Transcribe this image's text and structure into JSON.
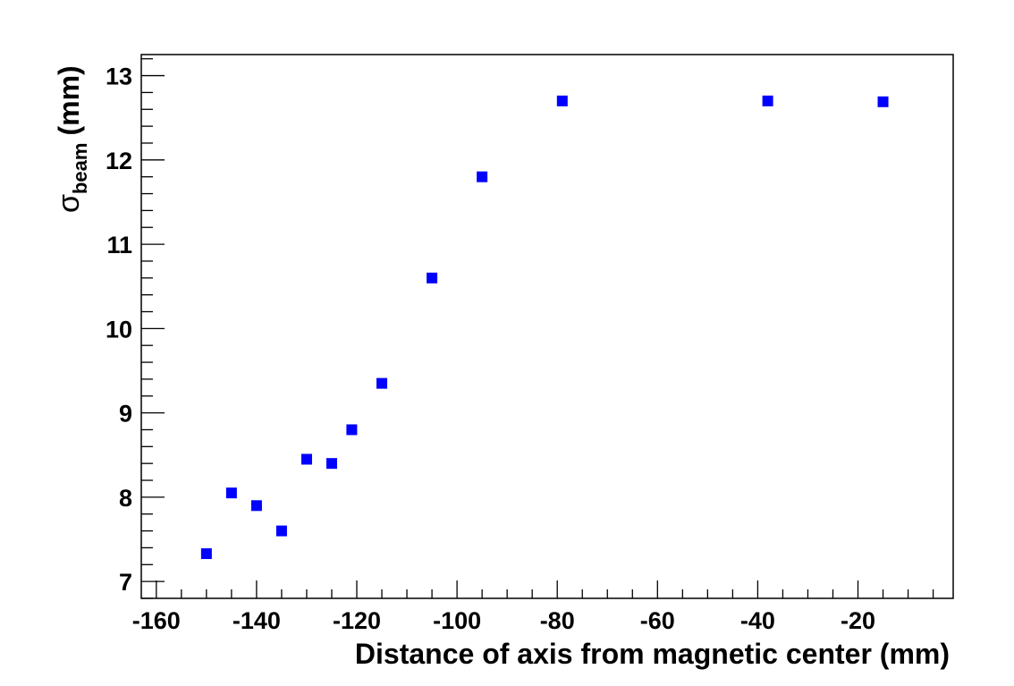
{
  "chart_data": {
    "type": "scatter",
    "title": "",
    "xlabel": "Distance of axis from magnetic center (mm)",
    "ylabel_main": "σ",
    "ylabel_sub": "beam",
    "ylabel_unit": "(mm)",
    "xlim": [
      -163,
      -1
    ],
    "ylim": [
      6.8,
      13.25
    ],
    "x_ticks": [
      -160,
      -140,
      -120,
      -100,
      -80,
      -60,
      -40,
      -20
    ],
    "x_tick_labels": [
      "-160",
      "-140",
      "-120",
      "-100",
      "-80",
      "-60",
      "-40",
      "-20"
    ],
    "y_ticks": [
      7,
      8,
      9,
      10,
      11,
      12,
      13
    ],
    "y_tick_labels": [
      "7",
      "8",
      "9",
      "10",
      "11",
      "12",
      "13"
    ],
    "grid": false,
    "legend": "none",
    "marker": "square",
    "marker_color": "#0000ff",
    "series": [
      {
        "x": [
          -150,
          -145,
          -140,
          -135,
          -130,
          -125,
          -121,
          -115,
          -105,
          -95,
          -79,
          -38,
          -15
        ],
        "y": [
          7.33,
          8.05,
          7.9,
          7.6,
          8.45,
          8.4,
          8.8,
          9.35,
          10.6,
          11.8,
          12.7,
          12.7,
          12.69
        ]
      }
    ]
  }
}
